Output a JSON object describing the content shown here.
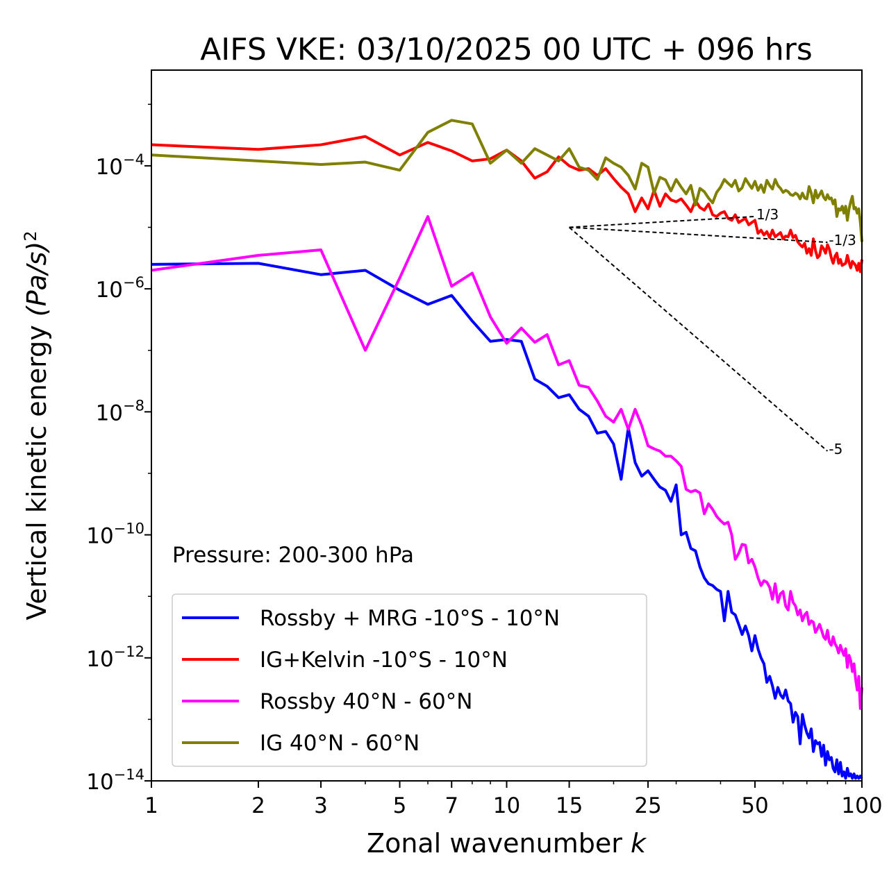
{
  "chart_data": {
    "type": "line",
    "title": "AIFS VKE: 03/10/2025 00 UTC + 096 hrs",
    "xlabel": "Zonal wavenumber k",
    "xlabel_main": "Zonal wavenumber ",
    "xlabel_var": "k",
    "ylabel": "Vertical kinetic energy (Pa/s)^2",
    "ylabel_main": "Vertical kinetic energy ",
    "ylabel_var": "(Pa/s)",
    "ylabel_sup": "2",
    "xscale": "log",
    "yscale": "log",
    "xlim": [
      1,
      100
    ],
    "ylim": [
      1e-14,
      0.0036
    ],
    "x_ticks": [
      1,
      2,
      3,
      5,
      7,
      10,
      15,
      25,
      50,
      100
    ],
    "x_tick_labels": [
      "1",
      "2",
      "3",
      "5",
      "7",
      "10",
      "15",
      "25",
      "50",
      "100"
    ],
    "y_ticks": [
      {
        "value": 0.0001,
        "base": "10",
        "exp": "−4"
      },
      {
        "value": 1e-06,
        "base": "10",
        "exp": "−6"
      },
      {
        "value": 1e-08,
        "base": "10",
        "exp": "−8"
      },
      {
        "value": 1e-10,
        "base": "10",
        "exp": "−10"
      },
      {
        "value": 1e-12,
        "base": "10",
        "exp": "−12"
      },
      {
        "value": 1e-14,
        "base": "10",
        "exp": "−14"
      }
    ],
    "annotation": "Pressure: 200-300 hPa",
    "legend_position": "lower-left",
    "series": [
      {
        "name": "Rossby + MRG -10°S - 10°N",
        "color": "#0000ff",
        "x": [
          1,
          2,
          3,
          4,
          5,
          6,
          7,
          8,
          9,
          10,
          11,
          12,
          13,
          14,
          15,
          16,
          17,
          18,
          19,
          20,
          21,
          22,
          23,
          24,
          25,
          26,
          27,
          28,
          29,
          30,
          31,
          32,
          33,
          34,
          35,
          36,
          37,
          38,
          39,
          40,
          41,
          42,
          43,
          44,
          45,
          46,
          47,
          48,
          49,
          50,
          51,
          52,
          53,
          54,
          55,
          56,
          57,
          58,
          59,
          60,
          61,
          62,
          63,
          64,
          65,
          66,
          67,
          68,
          69,
          70,
          71,
          72,
          73,
          74,
          75,
          76,
          77,
          78,
          79,
          80,
          81,
          82,
          83,
          84,
          85,
          86,
          87,
          88,
          89,
          90,
          91,
          92,
          93,
          94,
          95,
          96,
          97,
          98,
          99,
          100
        ],
        "values": [
          2.5e-06,
          2.6e-06,
          1.7e-06,
          2e-06,
          9.5e-07,
          5.6e-07,
          7.8e-07,
          3e-07,
          1.4e-07,
          1.5e-07,
          1.4e-07,
          3.4e-08,
          2.6e-08,
          1.7e-08,
          1.9e-08,
          1.1e-08,
          8.5e-09,
          4.5e-09,
          4.8e-09,
          3e-09,
          8e-10,
          5.5e-09,
          1.5e-09,
          9e-10,
          1.1e-09,
          8e-10,
          6e-10,
          5.3e-10,
          3.5e-10,
          6.5e-10,
          1e-10,
          1.1e-10,
          6e-11,
          5.5e-11,
          3e-11,
          2e-11,
          1.6e-11,
          1.5e-11,
          1.3e-11,
          1.2e-11,
          4e-12,
          1.2e-11,
          5.5e-12,
          5e-12,
          3.5e-12,
          2.4e-12,
          3.3e-12,
          2.3e-12,
          1.3e-12,
          2.3e-12,
          1.4e-12,
          1e-12,
          8e-13,
          4e-13,
          5e-13,
          3.5e-13,
          2.2e-13,
          3.3e-13,
          2.5e-13,
          2.2e-13,
          3e-13,
          2e-13,
          1.8e-13,
          9e-14,
          1.3e-13,
          1.1e-13,
          4e-14,
          1.2e-13,
          8e-14,
          6e-14,
          5e-14,
          7e-14,
          3e-14,
          4.5e-14,
          4e-14,
          4.2e-14,
          2.5e-14,
          3.8e-14,
          1.8e-14,
          3e-14,
          2.2e-14,
          2.4e-14,
          1.6e-14,
          1.4e-14,
          2.2e-14,
          1.3e-14,
          2e-14,
          1.2e-14,
          1.4e-14,
          1.1e-14,
          1.6e-14,
          1.2e-14,
          1.3e-14,
          1.1e-14,
          1.3e-14,
          1.1e-14,
          1.2e-14,
          1.1e-14,
          1.2e-14,
          1.1e-14
        ]
      },
      {
        "name": "IG+Kelvin -10°S - 10°N",
        "color": "#ff0000",
        "x": [
          1,
          2,
          3,
          4,
          5,
          6,
          7,
          8,
          9,
          10,
          11,
          12,
          13,
          14,
          15,
          16,
          17,
          18,
          19,
          20,
          21,
          22,
          23,
          24,
          25,
          26,
          27,
          28,
          29,
          30,
          31,
          32,
          33,
          34,
          35,
          36,
          37,
          38,
          39,
          40,
          41,
          42,
          43,
          44,
          45,
          46,
          47,
          48,
          49,
          50,
          51,
          52,
          53,
          54,
          55,
          56,
          57,
          58,
          59,
          60,
          61,
          62,
          63,
          64,
          65,
          66,
          67,
          68,
          69,
          70,
          71,
          72,
          73,
          74,
          75,
          76,
          77,
          78,
          79,
          80,
          81,
          82,
          83,
          84,
          85,
          86,
          87,
          88,
          89,
          90,
          91,
          92,
          93,
          94,
          95,
          96,
          97,
          98,
          99,
          100
        ],
        "values": [
          0.00022,
          0.000185,
          0.00022,
          0.0003,
          0.00015,
          0.00024,
          0.000175,
          0.00012,
          0.00013,
          0.00018,
          0.00012,
          6.3e-05,
          8e-05,
          0.00014,
          0.0001,
          8.5e-05,
          9e-05,
          7e-05,
          9e-05,
          6.2e-05,
          4.5e-05,
          3.5e-05,
          1.8e-05,
          3e-05,
          2e-05,
          4e-05,
          2.2e-05,
          3.5e-05,
          2.8e-05,
          2.6e-05,
          2.9e-05,
          2.3e-05,
          1.8e-05,
          2.7e-05,
          2.1e-05,
          1.9e-05,
          2.4e-05,
          1.6e-05,
          1.5e-05,
          1.7e-05,
          1.8e-05,
          1.4e-05,
          1.3e-05,
          1.6e-05,
          1.2e-05,
          1.3e-05,
          1.4e-05,
          1.1e-05,
          1.2e-05,
          1.3e-05,
          8e-06,
          9e-06,
          7.5e-06,
          8.5e-06,
          6.8e-06,
          9e-06,
          7e-06,
          7.6e-06,
          8.2e-06,
          6.5e-06,
          7.2e-06,
          7e-06,
          9e-06,
          6.8e-06,
          7.4e-06,
          5.8e-06,
          5.2e-06,
          4.8e-06,
          5.5e-06,
          3.8e-06,
          4.5e-06,
          3.5e-06,
          6.5e-06,
          4.2e-06,
          3.2e-06,
          3.5e-06,
          5e-06,
          4.5e-06,
          3.8e-06,
          5.2e-06,
          4.4e-06,
          3.2e-06,
          2.6e-06,
          3.4e-06,
          3.8e-06,
          2.6e-06,
          3e-06,
          2.4e-06,
          2.5e-06,
          2.6e-06,
          3.5e-06,
          2.7e-06,
          2.2e-06,
          2.8e-06,
          2.6e-06,
          2.4e-06,
          2e-06,
          2.6e-06,
          1.9e-06,
          3e-06
        ]
      },
      {
        "name": "Rossby 40°N - 60°N",
        "color": "#ff00ff",
        "x": [
          1,
          2,
          3,
          4,
          5,
          6,
          7,
          8,
          9,
          10,
          11,
          12,
          13,
          14,
          15,
          16,
          17,
          18,
          19,
          20,
          21,
          22,
          23,
          24,
          25,
          26,
          27,
          28,
          29,
          30,
          31,
          32,
          33,
          34,
          35,
          36,
          37,
          38,
          39,
          40,
          41,
          42,
          43,
          44,
          45,
          46,
          47,
          48,
          49,
          50,
          51,
          52,
          53,
          54,
          55,
          56,
          57,
          58,
          59,
          60,
          61,
          62,
          63,
          64,
          65,
          66,
          67,
          68,
          69,
          70,
          71,
          72,
          73,
          74,
          75,
          76,
          77,
          78,
          79,
          80,
          81,
          82,
          83,
          84,
          85,
          86,
          87,
          88,
          89,
          90,
          91,
          92,
          93,
          94,
          95,
          96,
          97,
          98,
          99,
          100
        ],
        "values": [
          2e-06,
          3.5e-06,
          4.3e-06,
          1e-07,
          1.5e-06,
          1.5e-05,
          1.1e-06,
          1.8e-06,
          3.5e-07,
          1.3e-07,
          2.3e-07,
          1.35e-07,
          1.8e-07,
          5.8e-08,
          6.8e-08,
          2.7e-08,
          2.5e-08,
          1.5e-08,
          8.5e-09,
          6.8e-09,
          1.1e-08,
          5.2e-09,
          1.1e-08,
          6e-09,
          2.8e-09,
          2.5e-09,
          2.3e-09,
          1.9e-09,
          1.9e-09,
          1.6e-09,
          1.3e-09,
          5.5e-10,
          5e-10,
          5.3e-10,
          4.8e-10,
          2.2e-10,
          3.2e-10,
          2.6e-10,
          2e-10,
          1.7e-10,
          1.5e-10,
          1.6e-10,
          1e-10,
          4e-11,
          5e-11,
          7e-11,
          6.8e-11,
          3.5e-11,
          4e-11,
          3e-11,
          2e-11,
          1.5e-11,
          1.8e-11,
          1.7e-11,
          1.4e-11,
          9e-12,
          1.6e-11,
          8e-12,
          1.1e-11,
          1.2e-11,
          7e-12,
          6e-12,
          1.2e-11,
          8e-12,
          7e-12,
          5e-12,
          6e-12,
          4e-12,
          5e-12,
          5.5e-12,
          3.5e-12,
          4e-12,
          3.8e-12,
          2.6e-12,
          3e-12,
          3.5e-12,
          2.8e-12,
          2.2e-12,
          2e-12,
          2.8e-12,
          1.8e-12,
          1.6e-12,
          2.2e-12,
          1.7e-12,
          1.5e-12,
          1.2e-12,
          1.6e-12,
          1.3e-12,
          1.1e-12,
          1.4e-12,
          7e-13,
          1.1e-12,
          9e-13,
          6e-13,
          8e-13,
          4.5e-13,
          3e-13,
          5e-13,
          1.5e-13,
          3.3e-13
        ]
      },
      {
        "name": "IG 40°N - 60°N",
        "color": "#808000",
        "x": [
          1,
          2,
          3,
          4,
          5,
          6,
          7,
          8,
          9,
          10,
          11,
          12,
          13,
          14,
          15,
          16,
          17,
          18,
          19,
          20,
          21,
          22,
          23,
          24,
          25,
          26,
          27,
          28,
          29,
          30,
          31,
          32,
          33,
          34,
          35,
          36,
          37,
          38,
          39,
          40,
          41,
          42,
          43,
          44,
          45,
          46,
          47,
          48,
          49,
          50,
          51,
          52,
          53,
          54,
          55,
          56,
          57,
          58,
          59,
          60,
          61,
          62,
          63,
          64,
          65,
          66,
          67,
          68,
          69,
          70,
          71,
          72,
          73,
          74,
          75,
          76,
          77,
          78,
          79,
          80,
          81,
          82,
          83,
          84,
          85,
          86,
          87,
          88,
          89,
          90,
          91,
          92,
          93,
          94,
          95,
          96,
          97,
          98,
          99,
          100
        ],
        "values": [
          0.00015,
          0.00012,
          0.000105,
          0.000115,
          8.5e-05,
          0.00035,
          0.00055,
          0.00048,
          0.00011,
          0.00018,
          0.00011,
          0.00019,
          0.00015,
          0.00012,
          0.00019,
          9.5e-05,
          8.5e-05,
          6e-05,
          0.000135,
          0.00011,
          9.5e-05,
          7e-05,
          4.2e-05,
          0.00011,
          9.5e-05,
          3.6e-05,
          6.5e-05,
          5.9e-05,
          3.9e-05,
          6e-05,
          4.5e-05,
          3.5e-05,
          4.8e-05,
          2.3e-05,
          4.3e-05,
          3.8e-05,
          3e-05,
          2.5e-05,
          3.7e-05,
          4.5e-05,
          6e-05,
          5.2e-05,
          4.6e-05,
          5.8e-05,
          3.9e-05,
          4.4e-05,
          6.2e-05,
          5.1e-05,
          4.3e-05,
          5.6e-05,
          4e-05,
          4.9e-05,
          3.7e-05,
          5.8e-05,
          4.8e-05,
          4.2e-05,
          6e-05,
          4.8e-05,
          4.3e-05,
          3.7e-05,
          4e-05,
          3.8e-05,
          3.4e-05,
          3.3e-05,
          3.6e-05,
          3.4e-05,
          2.9e-05,
          3.6e-05,
          3e-05,
          2.9e-05,
          4.6e-05,
          3.6e-05,
          2.5e-05,
          4e-05,
          3e-05,
          3.4e-05,
          3.9e-05,
          3.1e-05,
          2.8e-05,
          3.4e-05,
          2.9e-05,
          3e-05,
          2.4e-05,
          2.8e-05,
          1.5e-05,
          2e-05,
          1.9e-05,
          2.2e-05,
          1.7e-05,
          2.2e-05,
          1.3e-05,
          2e-05,
          2.6e-05,
          3.2e-05,
          2e-05,
          2.1e-05,
          1.7e-05,
          2e-05,
          1.2e-05,
          5.8e-06
        ]
      }
    ],
    "reference_lines": [
      {
        "slope_label": "1/3",
        "x": [
          15,
          50
        ],
        "y": [
          1e-05,
          1.5e-05
        ]
      },
      {
        "slope_label": "-1/3",
        "x": [
          15,
          80
        ],
        "y": [
          1e-05,
          5.7e-06
        ]
      },
      {
        "slope_label": "-5",
        "x": [
          15,
          80
        ],
        "y": [
          1e-05,
          2.3e-09
        ]
      }
    ]
  }
}
